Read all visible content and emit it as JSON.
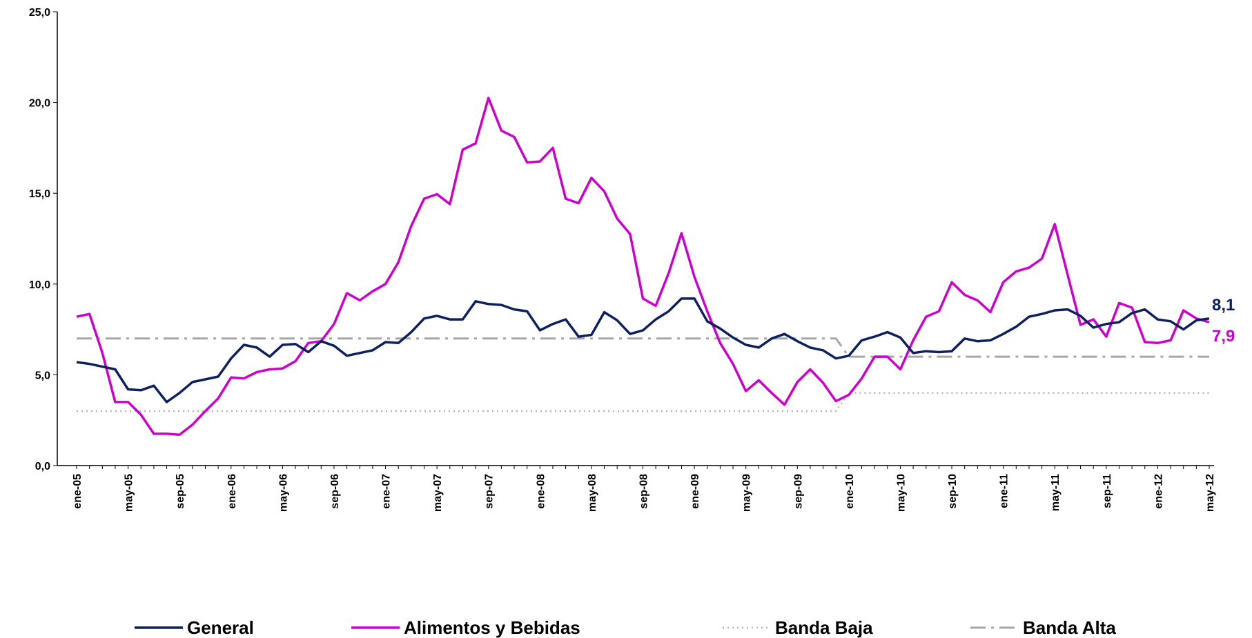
{
  "chart_data": {
    "type": "line",
    "categories": [
      "ene-05",
      null,
      null,
      null,
      "may-05",
      null,
      null,
      null,
      "sep-05",
      null,
      null,
      null,
      "ene-06",
      null,
      null,
      null,
      "may-06",
      null,
      null,
      null,
      "sep-06",
      null,
      null,
      null,
      "ene-07",
      null,
      null,
      null,
      "may-07",
      null,
      null,
      null,
      "sep-07",
      null,
      null,
      null,
      "ene-08",
      null,
      null,
      null,
      "may-08",
      null,
      null,
      null,
      "sep-08",
      null,
      null,
      null,
      "ene-09",
      null,
      null,
      null,
      "may-09",
      null,
      null,
      null,
      "sep-09",
      null,
      null,
      null,
      "ene-10",
      null,
      null,
      null,
      "may-10",
      null,
      null,
      null,
      "sep-10",
      null,
      null,
      null,
      "ene-11",
      null,
      null,
      null,
      "may-11",
      null,
      null,
      null,
      "sep-11",
      null,
      null,
      null,
      "ene-12",
      null,
      null,
      null,
      "may-12"
    ],
    "series": [
      {
        "name": "General",
        "color": "#0d1f5c",
        "dash": "solid",
        "width": 3.5,
        "values": [
          5.7,
          5.6,
          5.45,
          5.3,
          4.2,
          4.15,
          4.4,
          3.5,
          4.0,
          4.6,
          4.75,
          4.9,
          5.9,
          6.65,
          6.5,
          6.0,
          6.65,
          6.7,
          6.25,
          6.85,
          6.6,
          6.05,
          6.2,
          6.35,
          6.8,
          6.75,
          7.35,
          8.1,
          8.25,
          8.05,
          8.05,
          9.05,
          8.9,
          8.85,
          8.6,
          8.5,
          7.45,
          7.8,
          8.05,
          7.1,
          7.2,
          8.45,
          8.0,
          7.25,
          7.45,
          8.05,
          8.5,
          9.2,
          9.2,
          7.95,
          7.55,
          7.05,
          6.65,
          6.5,
          7.0,
          7.25,
          6.85,
          6.5,
          6.35,
          5.9,
          6.05,
          6.9,
          7.1,
          7.35,
          7.05,
          6.2,
          6.3,
          6.25,
          6.3,
          7.0,
          6.85,
          6.9,
          7.25,
          7.65,
          8.2,
          8.35,
          8.55,
          8.6,
          8.25,
          7.6,
          7.8,
          7.9,
          8.4,
          8.6,
          8.05,
          7.95,
          7.5,
          8.0,
          8.1
        ],
        "value_labels": [
          null,
          null,
          null,
          null,
          null,
          null,
          null,
          null,
          null,
          null,
          null,
          null,
          null,
          null,
          null,
          null,
          null,
          null,
          null,
          null,
          null,
          null,
          null,
          null,
          null,
          null,
          null,
          null,
          null,
          null,
          null,
          null,
          null,
          null,
          null,
          null,
          null,
          null,
          null,
          null,
          null,
          null,
          null,
          null,
          null,
          null,
          null,
          null,
          null,
          null,
          null,
          null,
          null,
          null,
          null,
          null,
          null,
          null,
          null,
          null,
          null,
          null,
          null,
          null,
          null,
          null,
          null,
          null,
          null,
          null,
          null,
          null,
          null,
          null,
          null,
          null,
          null,
          null,
          null,
          null,
          null,
          null,
          null,
          null,
          null,
          null,
          null,
          null,
          "8,1"
        ]
      },
      {
        "name": "Alimentos y Bebidas",
        "color": "#cc00cc",
        "dash": "solid",
        "width": 3.5,
        "values": [
          8.2,
          8.35,
          6.2,
          3.5,
          3.5,
          2.8,
          1.75,
          1.75,
          1.7,
          2.25,
          3.0,
          3.7,
          4.85,
          4.8,
          5.15,
          5.3,
          5.35,
          5.75,
          6.75,
          6.85,
          7.8,
          9.5,
          9.1,
          9.6,
          10.0,
          11.2,
          13.2,
          14.7,
          14.95,
          14.4,
          17.4,
          17.75,
          20.25,
          18.45,
          18.1,
          16.7,
          16.75,
          17.5,
          14.7,
          14.45,
          15.85,
          15.1,
          13.6,
          12.75,
          9.2,
          8.8,
          10.6,
          12.8,
          10.4,
          8.5,
          6.75,
          5.6,
          4.1,
          4.7,
          4.0,
          3.35,
          4.6,
          5.3,
          4.55,
          3.55,
          3.9,
          4.8,
          6.0,
          6.0,
          5.3,
          6.9,
          8.2,
          8.5,
          10.1,
          9.4,
          9.1,
          8.45,
          10.1,
          10.7,
          10.9,
          11.4,
          13.3,
          10.5,
          7.75,
          8.05,
          7.1,
          8.95,
          8.7,
          6.8,
          6.75,
          6.9,
          8.55,
          8.1,
          7.9
        ],
        "value_labels": [
          null,
          null,
          null,
          null,
          null,
          null,
          null,
          null,
          null,
          null,
          null,
          null,
          null,
          null,
          null,
          null,
          null,
          null,
          null,
          null,
          null,
          null,
          null,
          null,
          null,
          null,
          null,
          null,
          null,
          null,
          null,
          null,
          null,
          null,
          null,
          null,
          null,
          null,
          null,
          null,
          null,
          null,
          null,
          null,
          null,
          null,
          null,
          null,
          null,
          null,
          null,
          null,
          null,
          null,
          null,
          null,
          null,
          null,
          null,
          null,
          null,
          null,
          null,
          null,
          null,
          null,
          null,
          null,
          null,
          null,
          null,
          null,
          null,
          null,
          null,
          null,
          null,
          null,
          null,
          null,
          null,
          null,
          null,
          null,
          null,
          null,
          null,
          null,
          "7,9"
        ]
      },
      {
        "name": "Banda Baja",
        "color": "#b3b3b3",
        "dash": "dotted",
        "width": 2.5,
        "values": [
          3,
          3,
          3,
          3,
          3,
          3,
          3,
          3,
          3,
          3,
          3,
          3,
          3,
          3,
          3,
          3,
          3,
          3,
          3,
          3,
          3,
          3,
          3,
          3,
          3,
          3,
          3,
          3,
          3,
          3,
          3,
          3,
          3,
          3,
          3,
          3,
          3,
          3,
          3,
          3,
          3,
          3,
          3,
          3,
          3,
          3,
          3,
          3,
          3,
          3,
          3,
          3,
          3,
          3,
          3,
          3,
          3,
          3,
          3,
          3,
          4,
          4,
          4,
          4,
          4,
          4,
          4,
          4,
          4,
          4,
          4,
          4,
          4,
          4,
          4,
          4,
          4,
          4,
          4,
          4,
          4,
          4,
          4,
          4,
          4,
          4,
          4,
          4,
          4
        ]
      },
      {
        "name": "Banda Alta",
        "color": "#a6a6a6",
        "dash": "dashdot",
        "width": 3,
        "values": [
          7,
          7,
          7,
          7,
          7,
          7,
          7,
          7,
          7,
          7,
          7,
          7,
          7,
          7,
          7,
          7,
          7,
          7,
          7,
          7,
          7,
          7,
          7,
          7,
          7,
          7,
          7,
          7,
          7,
          7,
          7,
          7,
          7,
          7,
          7,
          7,
          7,
          7,
          7,
          7,
          7,
          7,
          7,
          7,
          7,
          7,
          7,
          7,
          7,
          7,
          7,
          7,
          7,
          7,
          7,
          7,
          7,
          7,
          7,
          7,
          6,
          6,
          6,
          6,
          6,
          6,
          6,
          6,
          6,
          6,
          6,
          6,
          6,
          6,
          6,
          6,
          6,
          6,
          6,
          6,
          6,
          6,
          6,
          6,
          6,
          6,
          6,
          6,
          6
        ]
      }
    ],
    "ylim": [
      0,
      25
    ],
    "yticks": [
      {
        "value": 0,
        "label": "0,0"
      },
      {
        "value": 5,
        "label": "5,0"
      },
      {
        "value": 10,
        "label": "10,0"
      },
      {
        "value": 15,
        "label": "15,0"
      },
      {
        "value": 20,
        "label": "20,0"
      },
      {
        "value": 25,
        "label": "25,0"
      }
    ],
    "grid": false,
    "legend": "bottom"
  }
}
